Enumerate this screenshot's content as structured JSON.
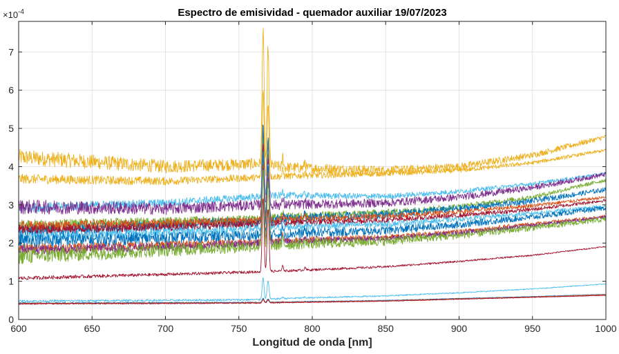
{
  "chart_data": {
    "type": "line",
    "title": "Espectro de emisividad - quemador auxiliar 19/07/2023",
    "xlabel": "Longitud de onda [nm]",
    "ylabel": "",
    "xlim": [
      600,
      1000
    ],
    "ylim": [
      0,
      0.00078
    ],
    "x_ticks": [
      600,
      650,
      700,
      750,
      800,
      850,
      900,
      950,
      1000
    ],
    "x_tick_labels": [
      "600",
      "650",
      "700",
      "750",
      "800",
      "850",
      "900",
      "950",
      "1000"
    ],
    "y_ticks": [
      0,
      0.0001,
      0.0002,
      0.0003,
      0.0004,
      0.0005,
      0.0006,
      0.0007
    ],
    "y_tick_labels": [
      "0",
      "1",
      "2",
      "3",
      "4",
      "5",
      "6",
      "7"
    ],
    "y_exponent_label": "×10",
    "y_exponent_power": "-4",
    "grid": true,
    "legend": "none",
    "peaks_nm": [
      766.5,
      769.9,
      780,
      795
    ],
    "series": [
      {
        "color": "#EDB120",
        "x": [
          600,
          700,
          766,
          780,
          850,
          900,
          950,
          1000
        ],
        "y": [
          0.000425,
          0.0004,
          0.000408,
          0.000398,
          0.00039,
          0.0004,
          0.00043,
          0.000478
        ],
        "peak": 0.00077,
        "noise": 1.3e-05
      },
      {
        "color": "#EDB120",
        "x": [
          600,
          700,
          766,
          780,
          850,
          900,
          950,
          1000
        ],
        "y": [
          0.000368,
          0.000362,
          0.000372,
          0.000375,
          0.000382,
          0.00039,
          0.00041,
          0.000443
        ],
        "peak": 0.0006,
        "noise": 8e-06
      },
      {
        "color": "#4DBEEE",
        "x": [
          600,
          700,
          766,
          780,
          850,
          900,
          950,
          1000
        ],
        "y": [
          0.000292,
          0.000305,
          0.000322,
          0.000325,
          0.000322,
          0.000335,
          0.000355,
          0.000382
        ],
        "peak": 0.00048,
        "noise": 8e-06
      },
      {
        "color": "#7E2F8E",
        "x": [
          600,
          700,
          766,
          780,
          850,
          900,
          950,
          1000
        ],
        "y": [
          0.000295,
          0.00029,
          0.0003,
          0.0003,
          0.000305,
          0.00032,
          0.000345,
          0.00038
        ],
        "peak": 0.0005,
        "noise": 1.2e-05
      },
      {
        "color": "#77AC30",
        "x": [
          600,
          700,
          766,
          780,
          850,
          900,
          950,
          1000
        ],
        "y": [
          0.000245,
          0.000255,
          0.000262,
          0.000268,
          0.00028,
          0.000295,
          0.00032,
          0.000365
        ],
        "peak": 0.00047,
        "noise": 1e-05
      },
      {
        "color": "#0072BD",
        "x": [
          600,
          700,
          766,
          780,
          850,
          900,
          950,
          1000
        ],
        "y": [
          0.00023,
          0.000245,
          0.000256,
          0.000262,
          0.000275,
          0.00029,
          0.00031,
          0.00034
        ],
        "peak": 0.00051,
        "noise": 1.2e-05
      },
      {
        "color": "#D95319",
        "x": [
          600,
          700,
          766,
          780,
          850,
          900,
          950,
          1000
        ],
        "y": [
          0.000245,
          0.000252,
          0.00026,
          0.000262,
          0.00027,
          0.000282,
          0.000298,
          0.00032
        ],
        "peak": 0.00046,
        "noise": 8e-06
      },
      {
        "color": "#A2142F",
        "x": [
          600,
          700,
          766,
          780,
          850,
          900,
          950,
          1000
        ],
        "y": [
          0.000235,
          0.000242,
          0.00025,
          0.000252,
          0.00026,
          0.000272,
          0.000288,
          0.000312
        ],
        "peak": 0.00045,
        "noise": 8e-06
      },
      {
        "color": "#4DBEEE",
        "x": [
          600,
          700,
          766,
          780,
          850,
          900,
          950,
          1000
        ],
        "y": [
          0.000215,
          0.000228,
          0.000238,
          0.000242,
          0.00025,
          0.000262,
          0.000278,
          0.000296
        ],
        "peak": 0.00044,
        "noise": 9e-06
      },
      {
        "color": "#0072BD",
        "x": [
          600,
          700,
          766,
          780,
          850,
          900,
          950,
          1000
        ],
        "y": [
          0.000205,
          0.000213,
          0.00022,
          0.000224,
          0.000233,
          0.000248,
          0.000268,
          0.000292
        ],
        "peak": 0.00043,
        "noise": 1.2e-05
      },
      {
        "color": "#D95319",
        "x": [
          600,
          700,
          766,
          780,
          850,
          900,
          950,
          1000
        ],
        "y": [
          0.000185,
          0.000195,
          0.000203,
          0.000207,
          0.000215,
          0.00023,
          0.00025,
          0.00027
        ],
        "peak": 0.00041,
        "noise": 8e-06
      },
      {
        "color": "#7E2F8E",
        "x": [
          600,
          700,
          766,
          780,
          850,
          900,
          950,
          1000
        ],
        "y": [
          0.00018,
          0.00019,
          0.0002,
          0.000204,
          0.000212,
          0.000226,
          0.000246,
          0.000268
        ],
        "peak": 0.0004,
        "noise": 8e-06
      },
      {
        "color": "#77AC30",
        "x": [
          600,
          700,
          766,
          780,
          850,
          900,
          950,
          1000
        ],
        "y": [
          0.000165,
          0.000182,
          0.000192,
          0.000196,
          0.000205,
          0.00022,
          0.00024,
          0.000262
        ],
        "peak": 0.00039,
        "noise": 1.3e-05
      },
      {
        "color": "#A2142F",
        "x": [
          600,
          700,
          766,
          780,
          850,
          900,
          950,
          1000
        ],
        "y": [
          0.000108,
          0.000118,
          0.000125,
          0.000127,
          0.000138,
          0.000152,
          0.000168,
          0.000191
        ],
        "peak": 0.00032,
        "noise": 3e-06
      },
      {
        "color": "#4DBEEE",
        "x": [
          600,
          700,
          766,
          780,
          850,
          900,
          950,
          1000
        ],
        "y": [
          4.8e-05,
          5e-05,
          5.2e-05,
          5.5e-05,
          6.2e-05,
          7e-05,
          8e-05,
          9.3e-05
        ],
        "peak": 0.00011,
        "noise": 2e-06
      },
      {
        "color": "#0072BD",
        "x": [
          600,
          700,
          766,
          780,
          850,
          900,
          950,
          1000
        ],
        "y": [
          4.3e-05,
          4.4e-05,
          4.5e-05,
          4.6e-05,
          5e-05,
          5.5e-05,
          6e-05,
          6.6e-05
        ],
        "peak": 5.5e-05,
        "noise": 1e-06
      },
      {
        "color": "#D95319",
        "x": [
          600,
          700,
          766,
          780,
          850,
          900,
          950,
          1000
        ],
        "y": [
          4.2e-05,
          4.3e-05,
          4.4e-05,
          4.5e-05,
          4.9e-05,
          5.4e-05,
          5.9e-05,
          6.5e-05
        ],
        "peak": 5.3e-05,
        "noise": 1e-06
      },
      {
        "color": "#A2142F",
        "x": [
          600,
          700,
          766,
          780,
          850,
          900,
          950,
          1000
        ],
        "y": [
          4.1e-05,
          4.2e-05,
          4.3e-05,
          4.4e-05,
          4.8e-05,
          5.3e-05,
          5.8e-05,
          6.3e-05
        ],
        "peak": 5.2e-05,
        "noise": 1e-06
      }
    ]
  }
}
